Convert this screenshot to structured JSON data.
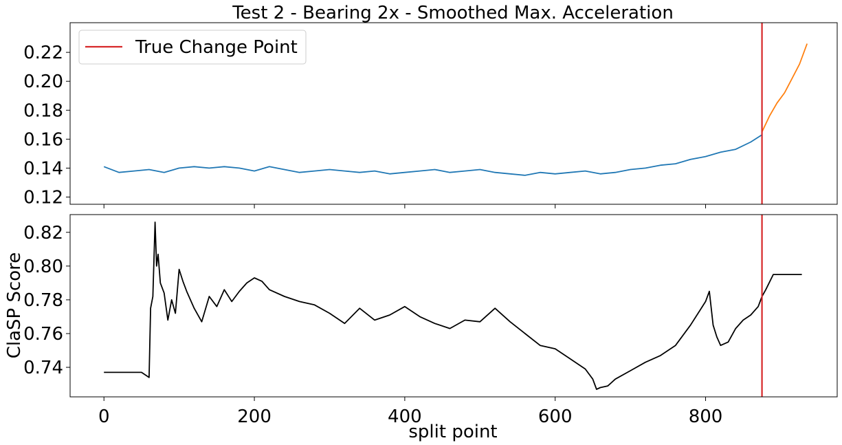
{
  "chart_data": [
    {
      "type": "line",
      "title": "Test 2 - Bearing 2x - Smoothed Max. Acceleration",
      "xlabel": "",
      "ylabel": "",
      "xlim": [
        -45,
        975
      ],
      "ylim": [
        0.115,
        0.2405
      ],
      "yticks": [
        0.12,
        0.14,
        0.16,
        0.18,
        0.2,
        0.22
      ],
      "ytick_labels": [
        "0.12",
        "0.14",
        "0.16",
        "0.18",
        "0.20",
        "0.22"
      ],
      "xticks": [
        0,
        200,
        400,
        600,
        800
      ],
      "legend": {
        "position": "top-left",
        "entries": [
          {
            "label": "True Change Point",
            "color": "#d62728"
          }
        ]
      },
      "change_point": 875,
      "series": [
        {
          "color": "#1f77b4",
          "x": [
            0,
            20,
            40,
            60,
            80,
            100,
            120,
            140,
            160,
            180,
            200,
            220,
            240,
            260,
            280,
            300,
            320,
            340,
            360,
            380,
            400,
            420,
            440,
            460,
            480,
            500,
            520,
            540,
            560,
            580,
            600,
            620,
            640,
            660,
            680,
            700,
            720,
            740,
            760,
            780,
            800,
            820,
            840,
            860,
            875
          ],
          "y": [
            0.141,
            0.137,
            0.138,
            0.139,
            0.137,
            0.14,
            0.141,
            0.14,
            0.141,
            0.14,
            0.138,
            0.141,
            0.139,
            0.137,
            0.138,
            0.139,
            0.138,
            0.137,
            0.138,
            0.136,
            0.137,
            0.138,
            0.139,
            0.137,
            0.138,
            0.139,
            0.137,
            0.136,
            0.135,
            0.137,
            0.136,
            0.137,
            0.138,
            0.136,
            0.137,
            0.139,
            0.14,
            0.142,
            0.143,
            0.146,
            0.148,
            0.151,
            0.153,
            0.158,
            0.163
          ]
        },
        {
          "color": "#ff7f0e",
          "x": [
            875,
            885,
            895,
            905,
            915,
            925,
            935
          ],
          "y": [
            0.165,
            0.176,
            0.185,
            0.192,
            0.202,
            0.212,
            0.226
          ]
        }
      ]
    },
    {
      "type": "line",
      "title": "",
      "xlabel": "split point",
      "ylabel": "ClaSP Score",
      "xlim": [
        -45,
        975
      ],
      "ylim": [
        0.7225,
        0.8305
      ],
      "yticks": [
        0.74,
        0.76,
        0.78,
        0.8,
        0.82
      ],
      "ytick_labels": [
        "0.74",
        "0.76",
        "0.78",
        "0.80",
        "0.82"
      ],
      "xticks": [
        0,
        200,
        400,
        600,
        800
      ],
      "xtick_labels": [
        "0",
        "200",
        "400",
        "600",
        "800"
      ],
      "change_point": 875,
      "series": [
        {
          "color": "#000000",
          "x": [
            0,
            50,
            60,
            62,
            65,
            68,
            70,
            72,
            75,
            80,
            85,
            90,
            95,
            100,
            105,
            110,
            120,
            130,
            140,
            150,
            160,
            170,
            180,
            190,
            200,
            210,
            220,
            240,
            260,
            280,
            300,
            320,
            340,
            360,
            380,
            400,
            420,
            440,
            460,
            480,
            500,
            520,
            540,
            560,
            580,
            600,
            620,
            640,
            650,
            655,
            660,
            670,
            680,
            700,
            720,
            740,
            760,
            780,
            790,
            800,
            805,
            810,
            815,
            820,
            830,
            840,
            850,
            860,
            870,
            875,
            880,
            890,
            900,
            910,
            920,
            928
          ],
          "y": [
            0.737,
            0.737,
            0.734,
            0.775,
            0.782,
            0.826,
            0.8,
            0.807,
            0.79,
            0.784,
            0.768,
            0.78,
            0.772,
            0.798,
            0.791,
            0.785,
            0.775,
            0.767,
            0.782,
            0.776,
            0.786,
            0.779,
            0.785,
            0.79,
            0.793,
            0.791,
            0.786,
            0.782,
            0.779,
            0.777,
            0.772,
            0.766,
            0.775,
            0.768,
            0.771,
            0.776,
            0.77,
            0.766,
            0.763,
            0.768,
            0.767,
            0.775,
            0.767,
            0.76,
            0.753,
            0.751,
            0.745,
            0.739,
            0.733,
            0.727,
            0.728,
            0.729,
            0.733,
            0.738,
            0.743,
            0.747,
            0.753,
            0.765,
            0.772,
            0.779,
            0.785,
            0.765,
            0.758,
            0.753,
            0.755,
            0.763,
            0.768,
            0.771,
            0.776,
            0.782,
            0.786,
            0.795,
            0.795,
            0.795,
            0.795,
            0.795
          ]
        }
      ]
    }
  ]
}
